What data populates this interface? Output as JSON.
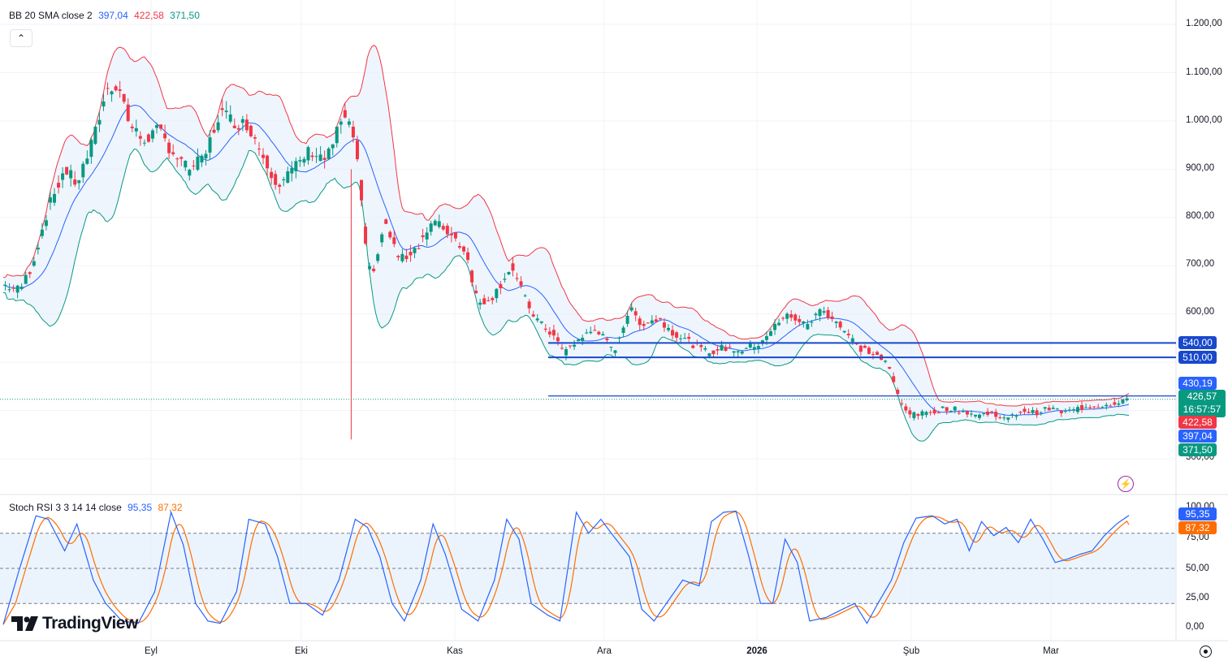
{
  "legend": {
    "bb_label": "BB 20 SMA close 2",
    "bb_basis": "397,04",
    "bb_upper": "422,58",
    "bb_lower": "371,50",
    "stoch_label": "Stoch RSI 3 3 14 14 close",
    "stoch_k": "95,35",
    "stoch_d": "87,32"
  },
  "colors": {
    "up": "#089981",
    "down": "#f23645",
    "bb_upper": "#f23645",
    "bb_basis": "#2962ff",
    "bb_lower": "#089981",
    "bb_fill": "#e3effb",
    "level": "#1848cc",
    "stoch_k": "#2962ff",
    "stoch_d": "#ff6d00",
    "stoch_band": "#e3effb"
  },
  "price_axis": {
    "labels": [
      "1.200,00",
      "1.100,00",
      "1.000,00",
      "900,00",
      "800,00",
      "700,00",
      "600,00",
      "300,00"
    ],
    "tags": {
      "level_540": "540,00",
      "level_510": "510,00",
      "level_430": "430,19",
      "last_price": "426,57",
      "countdown": "16:57:57",
      "bb_upper": "422,58",
      "bb_basis": "397,04",
      "bb_lower": "371,50"
    }
  },
  "stoch_axis": {
    "labels": [
      "100,00",
      "75,00",
      "50,00",
      "25,00",
      "0,00"
    ],
    "tags": {
      "k": "95,35",
      "d": "87,32"
    }
  },
  "time_axis": [
    {
      "label": "Eyl",
      "bold": false
    },
    {
      "label": "Eki",
      "bold": false
    },
    {
      "label": "Kas",
      "bold": false
    },
    {
      "label": "Ara",
      "bold": false
    },
    {
      "label": "2026",
      "bold": true
    },
    {
      "label": "Şub",
      "bold": false
    },
    {
      "label": "Mar",
      "bold": false
    }
  ],
  "logo": "TradingView",
  "chart_data": {
    "type": "candlestick",
    "horizontal_levels": [
      540,
      510,
      430.19
    ],
    "last_price": 426.57,
    "price_keypoints": [
      [
        0,
        660
      ],
      [
        8,
        650
      ],
      [
        14,
        700
      ],
      [
        22,
        820
      ],
      [
        30,
        900
      ],
      [
        36,
        870
      ],
      [
        44,
        960
      ],
      [
        50,
        1060
      ],
      [
        56,
        1080
      ],
      [
        62,
        990
      ],
      [
        68,
        960
      ],
      [
        76,
        980
      ],
      [
        82,
        940
      ],
      [
        90,
        900
      ],
      [
        98,
        920
      ],
      [
        106,
        1020
      ],
      [
        112,
        1000
      ],
      [
        120,
        990
      ],
      [
        128,
        920
      ],
      [
        134,
        870
      ],
      [
        142,
        900
      ],
      [
        150,
        940
      ],
      [
        158,
        920
      ],
      [
        166,
        1010
      ],
      [
        172,
        960
      ],
      [
        178,
        690
      ],
      [
        182,
        700
      ],
      [
        186,
        790
      ],
      [
        194,
        710
      ],
      [
        202,
        740
      ],
      [
        210,
        790
      ],
      [
        218,
        770
      ],
      [
        226,
        730
      ],
      [
        232,
        620
      ],
      [
        240,
        640
      ],
      [
        248,
        700
      ],
      [
        256,
        620
      ],
      [
        262,
        580
      ],
      [
        268,
        560
      ],
      [
        274,
        520
      ],
      [
        282,
        550
      ],
      [
        290,
        570
      ],
      [
        298,
        520
      ],
      [
        306,
        610
      ],
      [
        312,
        580
      ],
      [
        320,
        590
      ],
      [
        328,
        560
      ],
      [
        336,
        540
      ],
      [
        344,
        520
      ],
      [
        352,
        530
      ],
      [
        360,
        525
      ],
      [
        368,
        535
      ],
      [
        376,
        570
      ],
      [
        384,
        600
      ],
      [
        392,
        575
      ],
      [
        400,
        610
      ],
      [
        406,
        590
      ],
      [
        412,
        560
      ],
      [
        418,
        530
      ],
      [
        424,
        520
      ],
      [
        428,
        510
      ],
      [
        432,
        495
      ],
      [
        438,
        420
      ],
      [
        444,
        390
      ],
      [
        452,
        395
      ],
      [
        460,
        405
      ],
      [
        468,
        400
      ],
      [
        476,
        390
      ],
      [
        484,
        395
      ],
      [
        490,
        380
      ],
      [
        498,
        400
      ],
      [
        504,
        395
      ],
      [
        512,
        405
      ],
      [
        518,
        395
      ],
      [
        526,
        405
      ],
      [
        532,
        410
      ],
      [
        540,
        412
      ],
      [
        546,
        420
      ],
      [
        550,
        426.57
      ]
    ],
    "stoch_k_keypoints": [
      [
        0,
        2
      ],
      [
        8,
        50
      ],
      [
        16,
        95
      ],
      [
        22,
        92
      ],
      [
        30,
        65
      ],
      [
        36,
        88
      ],
      [
        44,
        40
      ],
      [
        50,
        20
      ],
      [
        58,
        5
      ],
      [
        66,
        3
      ],
      [
        74,
        30
      ],
      [
        82,
        98
      ],
      [
        88,
        70
      ],
      [
        94,
        20
      ],
      [
        100,
        5
      ],
      [
        106,
        3
      ],
      [
        114,
        30
      ],
      [
        120,
        92
      ],
      [
        128,
        88
      ],
      [
        134,
        60
      ],
      [
        140,
        20
      ],
      [
        148,
        20
      ],
      [
        156,
        10
      ],
      [
        164,
        40
      ],
      [
        172,
        92
      ],
      [
        178,
        85
      ],
      [
        184,
        60
      ],
      [
        190,
        20
      ],
      [
        196,
        5
      ],
      [
        204,
        40
      ],
      [
        210,
        88
      ],
      [
        216,
        62
      ],
      [
        224,
        15
      ],
      [
        232,
        5
      ],
      [
        240,
        40
      ],
      [
        246,
        92
      ],
      [
        252,
        75
      ],
      [
        258,
        20
      ],
      [
        266,
        10
      ],
      [
        272,
        5
      ],
      [
        280,
        98
      ],
      [
        286,
        80
      ],
      [
        292,
        92
      ],
      [
        298,
        78
      ],
      [
        306,
        60
      ],
      [
        312,
        15
      ],
      [
        318,
        5
      ],
      [
        326,
        25
      ],
      [
        332,
        40
      ],
      [
        340,
        35
      ],
      [
        346,
        90
      ],
      [
        352,
        98
      ],
      [
        358,
        99
      ],
      [
        364,
        62
      ],
      [
        370,
        20
      ],
      [
        376,
        20
      ],
      [
        382,
        75
      ],
      [
        388,
        55
      ],
      [
        394,
        5
      ],
      [
        402,
        8
      ],
      [
        410,
        15
      ],
      [
        416,
        20
      ],
      [
        422,
        3
      ],
      [
        428,
        22
      ],
      [
        434,
        40
      ],
      [
        440,
        72
      ],
      [
        446,
        93
      ],
      [
        454,
        95
      ],
      [
        460,
        88
      ],
      [
        466,
        92
      ],
      [
        472,
        65
      ],
      [
        478,
        90
      ],
      [
        484,
        78
      ],
      [
        490,
        85
      ],
      [
        496,
        72
      ],
      [
        502,
        92
      ],
      [
        508,
        75
      ],
      [
        514,
        55
      ],
      [
        520,
        58
      ],
      [
        526,
        62
      ],
      [
        532,
        65
      ],
      [
        538,
        78
      ],
      [
        544,
        88
      ],
      [
        550,
        95.35
      ]
    ],
    "stoch_k_last": 95.35,
    "stoch_d_last": 87.32,
    "stoch_levels": [
      80,
      50,
      20
    ],
    "xlim": [
      "Ağu",
      "Mar"
    ],
    "ylim": [
      300,
      1200
    ],
    "grid": true
  }
}
